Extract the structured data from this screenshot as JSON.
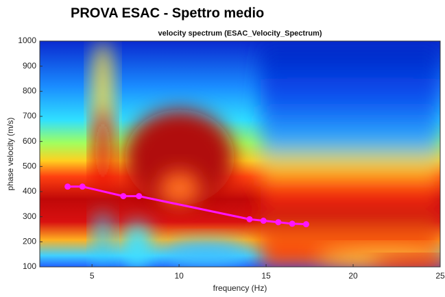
{
  "chart_data": {
    "type": "line",
    "title": "PROVA ESAC - Spettro medio",
    "subtitle": "velocity spectrum (ESAC_Velocity_Spectrum)",
    "xlabel": "frequency (Hz)",
    "ylabel": "phase velocity (m/s)",
    "x": [
      3.6,
      4.45,
      6.8,
      7.7,
      14.05,
      14.85,
      15.7,
      16.5,
      17.3
    ],
    "values": [
      420,
      420,
      382,
      382,
      290,
      284,
      278,
      272,
      270
    ],
    "color": "#ff14ff",
    "xlim": [
      2,
      25
    ],
    "ylim": [
      100,
      1000
    ],
    "xticks": [
      5,
      10,
      15,
      20,
      25
    ],
    "yticks": [
      100,
      200,
      300,
      400,
      500,
      600,
      700,
      800,
      900,
      1000
    ]
  }
}
